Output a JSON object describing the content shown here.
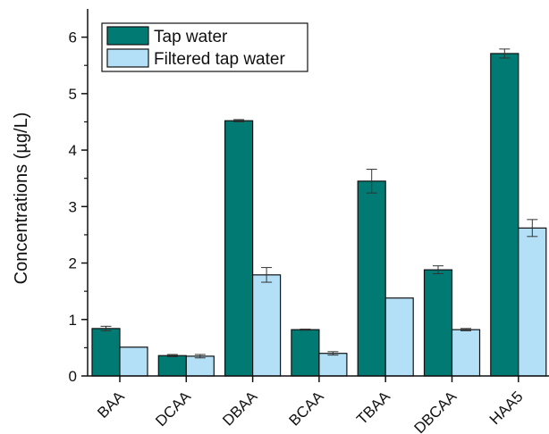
{
  "chart_data": {
    "type": "bar",
    "title": "",
    "xlabel": "",
    "ylabel": "Concentrations (µg/L)",
    "ylim": [
      0,
      6.5
    ],
    "yticks": [
      0,
      1,
      2,
      3,
      4,
      5,
      6
    ],
    "categories": [
      "BAA",
      "DCAA",
      "DBAA",
      "BCAA",
      "TBAA",
      "DBCAA",
      "HAA5"
    ],
    "series": [
      {
        "name": "Tap water",
        "color": "#007a73",
        "values": [
          0.84,
          0.36,
          4.52,
          0.82,
          3.45,
          1.88,
          5.71
        ],
        "errors": [
          0.04,
          0.02,
          0.02,
          0.01,
          0.21,
          0.07,
          0.08
        ]
      },
      {
        "name": "Filtered tap water",
        "color": "#b3e0f7",
        "values": [
          0.51,
          0.35,
          1.79,
          0.4,
          1.38,
          0.82,
          2.62
        ],
        "errors": [
          0.0,
          0.03,
          0.13,
          0.03,
          0.0,
          0.02,
          0.15
        ]
      }
    ],
    "legend": {
      "position": "top-left"
    },
    "grid": false
  }
}
